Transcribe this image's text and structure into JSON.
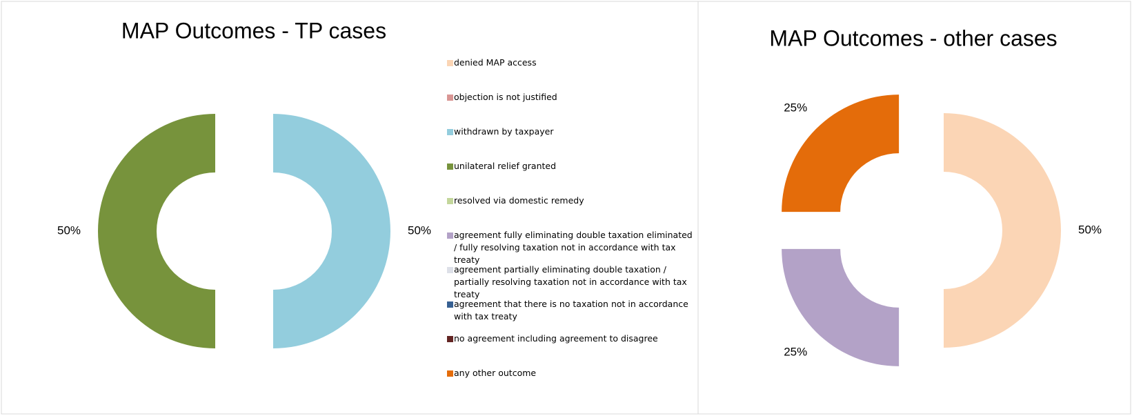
{
  "chart_data": [
    {
      "type": "donut",
      "title": "MAP Outcomes - TP cases",
      "categories": [
        "denied MAP access",
        "objection is not justified",
        "withdrawn by taxpayer",
        "unilateral relief granted",
        "resolved via domestic remedy",
        "agreement fully eliminating double taxation eliminated / fully resolving taxation not in accordance with tax treaty",
        "agreement partially eliminating double taxation / partially resolving taxation not in accordance with tax treaty",
        "agreement that there is no taxation not in accordance with tax treaty",
        "no agreement including agreement to disagree",
        "any other outcome"
      ],
      "values": [
        0,
        0,
        50,
        50,
        0,
        0,
        0,
        0,
        0,
        0
      ],
      "value_labels": [
        null,
        null,
        "50%",
        "50%",
        null,
        null,
        null,
        null,
        null,
        null
      ],
      "colors": [
        "#fbd5b5",
        "#d99694",
        "#93cddd",
        "#77933c",
        "#c3d69b",
        "#b3a2c7",
        "#dde0e8",
        "#376092",
        "#632523",
        "#e46c0a"
      ],
      "legend": "right"
    },
    {
      "type": "donut",
      "title": "MAP Outcomes - other cases",
      "values": [
        50,
        25,
        25
      ],
      "value_labels": [
        "50%",
        "25%",
        "25%"
      ],
      "colors": [
        "#fbd5b5",
        "#b3a2c7",
        "#e46c0a"
      ]
    }
  ]
}
